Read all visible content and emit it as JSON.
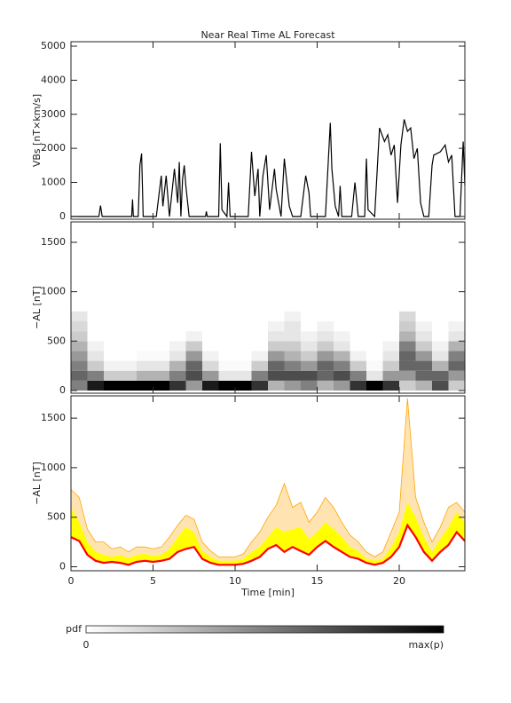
{
  "chart_data": [
    {
      "type": "line",
      "title": "Near Real Time AL Forecast",
      "ylabel": "VBs [nT×km/s]",
      "color": "#000000",
      "x": [
        0,
        1.7,
        1.8,
        1.9,
        3.7,
        3.75,
        3.8,
        4.1,
        4.2,
        4.3,
        4.4,
        5.2,
        5.5,
        5.6,
        5.8,
        6.0,
        6.3,
        6.5,
        6.6,
        6.7,
        6.8,
        6.9,
        7.0,
        7.2,
        8.2,
        8.25,
        8.3,
        9.0,
        9.1,
        9.2,
        9.5,
        9.6,
        9.7,
        10.8,
        11.0,
        11.2,
        11.4,
        11.5,
        11.7,
        11.9,
        12.1,
        12.4,
        12.5,
        12.8,
        13.0,
        13.3,
        13.5,
        14.0,
        14.3,
        14.5,
        14.6,
        15.5,
        15.8,
        15.9,
        16.1,
        16.3,
        16.4,
        16.5,
        17.1,
        17.3,
        17.5,
        17.9,
        18.0,
        18.1,
        18.5,
        18.8,
        19.1,
        19.3,
        19.5,
        19.7,
        19.9,
        20.1,
        20.3,
        20.5,
        20.7,
        20.9,
        21.1,
        21.3,
        21.5,
        21.8,
        22.0,
        22.1,
        22.5,
        22.8,
        23.0,
        23.2,
        23.4,
        23.7,
        23.9,
        24.0
      ],
      "values": [
        0,
        0,
        320,
        0,
        0,
        500,
        0,
        0,
        1500,
        1850,
        0,
        0,
        1200,
        300,
        1200,
        0,
        1400,
        400,
        1600,
        0,
        1100,
        1500,
        900,
        0,
        0,
        150,
        0,
        0,
        2150,
        200,
        0,
        1000,
        0,
        0,
        1900,
        600,
        1400,
        0,
        1200,
        1800,
        200,
        1400,
        800,
        0,
        1700,
        300,
        0,
        0,
        1200,
        700,
        0,
        0,
        2750,
        1400,
        300,
        0,
        900,
        0,
        0,
        1000,
        0,
        0,
        1700,
        200,
        0,
        2600,
        2200,
        2400,
        1800,
        2100,
        400,
        2100,
        2850,
        2500,
        2600,
        1700,
        2000,
        400,
        0,
        0,
        1500,
        1800,
        1900,
        2100,
        1600,
        1800,
        0,
        0,
        2200,
        900
      ],
      "ylim": [
        -80,
        5130
      ],
      "yticks": [
        0,
        1000,
        2000,
        3000,
        4000,
        5000
      ]
    },
    {
      "type": "heatmap",
      "ylabel": "−AL [nT]",
      "xbins": [
        0,
        1,
        2,
        3,
        4,
        5,
        6,
        7,
        8,
        9,
        10,
        11,
        12,
        13,
        14,
        15,
        16,
        17,
        18,
        19,
        20,
        21,
        22,
        23,
        24
      ],
      "ybins": [
        0,
        100,
        200,
        300,
        400,
        500,
        600,
        700,
        800
      ],
      "z": [
        [
          0.5,
          0.9,
          1,
          1,
          1,
          1,
          0.8,
          0.4,
          0.9,
          1,
          1,
          0.8,
          0.3,
          0.4,
          0.5,
          0.3,
          0.4,
          0.8,
          1,
          0.8,
          0.2,
          0.3,
          0.7,
          0.2
        ],
        [
          0.6,
          0.5,
          0.2,
          0.2,
          0.3,
          0.3,
          0.5,
          0.7,
          0.4,
          0.1,
          0.1,
          0.5,
          0.7,
          0.7,
          0.7,
          0.6,
          0.7,
          0.5,
          0.1,
          0.4,
          0.4,
          0.6,
          0.6,
          0.4
        ],
        [
          0.5,
          0.2,
          0.05,
          0.05,
          0.1,
          0.1,
          0.3,
          0.6,
          0.15,
          0.02,
          0.02,
          0.2,
          0.6,
          0.5,
          0.4,
          0.6,
          0.5,
          0.2,
          0.02,
          0.2,
          0.6,
          0.6,
          0.3,
          0.6
        ],
        [
          0.4,
          0.1,
          0,
          0,
          0.02,
          0.02,
          0.1,
          0.4,
          0.05,
          0,
          0,
          0.05,
          0.4,
          0.3,
          0.2,
          0.4,
          0.3,
          0.05,
          0,
          0.1,
          0.6,
          0.4,
          0.1,
          0.5
        ],
        [
          0.3,
          0.05,
          0,
          0,
          0,
          0,
          0.05,
          0.2,
          0,
          0,
          0,
          0,
          0.2,
          0.2,
          0.1,
          0.2,
          0.1,
          0,
          0,
          0.05,
          0.5,
          0.2,
          0.05,
          0.3
        ],
        [
          0.2,
          0,
          0,
          0,
          0,
          0,
          0,
          0.05,
          0,
          0,
          0,
          0,
          0.1,
          0.1,
          0.05,
          0.1,
          0.05,
          0,
          0,
          0,
          0.3,
          0.1,
          0,
          0.1
        ],
        [
          0.15,
          0,
          0,
          0,
          0,
          0,
          0,
          0,
          0,
          0,
          0,
          0,
          0.05,
          0.1,
          0,
          0.05,
          0,
          0,
          0,
          0,
          0.2,
          0.05,
          0,
          0.05
        ],
        [
          0.1,
          0,
          0,
          0,
          0,
          0,
          0,
          0,
          0,
          0,
          0,
          0,
          0,
          0.05,
          0,
          0,
          0,
          0,
          0,
          0,
          0.15,
          0,
          0,
          0
        ]
      ],
      "colors": [
        "#ffffff",
        "#000000"
      ],
      "colorbar": {
        "label": "pdf",
        "min_label": "0",
        "max_label": "max(p)"
      },
      "ylim": [
        -27,
        1706
      ],
      "yticks": [
        0,
        500,
        1000,
        1500
      ]
    },
    {
      "type": "band",
      "ylabel": "−AL [nT]",
      "xlabel": "Time [min]",
      "x": [
        0,
        0.5,
        1,
        1.5,
        2,
        2.5,
        3,
        3.5,
        4,
        4.5,
        5,
        5.5,
        6,
        6.5,
        7,
        7.5,
        8,
        8.5,
        9,
        9.5,
        10,
        10.5,
        11,
        11.5,
        12,
        12.5,
        13,
        13.5,
        14,
        14.5,
        15,
        15.5,
        16,
        16.5,
        17,
        17.5,
        18,
        18.5,
        19,
        19.5,
        20,
        20.5,
        21,
        21.5,
        22,
        22.5,
        23,
        23.5,
        24
      ],
      "series": [
        {
          "color": "#ffa500",
          "values": [
            780,
            700,
            380,
            250,
            250,
            180,
            200,
            150,
            200,
            200,
            180,
            200,
            300,
            420,
            520,
            480,
            250,
            160,
            100,
            100,
            100,
            130,
            250,
            350,
            500,
            620,
            840,
            600,
            650,
            450,
            550,
            700,
            600,
            450,
            320,
            250,
            150,
            100,
            150,
            350,
            550,
            1700,
            700,
            450,
            250,
            400,
            600,
            650,
            550
          ]
        },
        {
          "color": "#ffff00",
          "values": [
            600,
            450,
            250,
            150,
            120,
            100,
            120,
            90,
            120,
            130,
            110,
            120,
            180,
            300,
            400,
            350,
            160,
            100,
            60,
            60,
            60,
            80,
            150,
            200,
            300,
            400,
            350,
            380,
            400,
            280,
            350,
            450,
            380,
            300,
            200,
            160,
            80,
            60,
            80,
            200,
            350,
            650,
            500,
            300,
            150,
            280,
            400,
            550,
            450
          ]
        },
        {
          "color": "#ff0000",
          "values": [
            300,
            260,
            120,
            60,
            40,
            50,
            40,
            20,
            50,
            60,
            50,
            60,
            80,
            150,
            180,
            200,
            80,
            40,
            20,
            20,
            20,
            30,
            60,
            100,
            180,
            220,
            150,
            200,
            160,
            120,
            200,
            260,
            200,
            150,
            100,
            80,
            40,
            20,
            40,
            100,
            200,
            420,
            300,
            150,
            60,
            150,
            220,
            350,
            260
          ]
        }
      ],
      "xlim": [
        0,
        24
      ],
      "xticks": [
        0,
        5,
        10,
        15,
        20
      ],
      "ylim": [
        -40,
        1725
      ],
      "yticks": [
        0,
        500,
        1000,
        1500
      ]
    }
  ]
}
